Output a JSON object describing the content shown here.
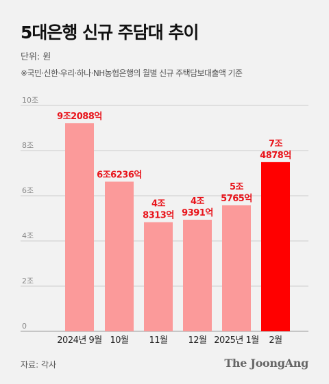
{
  "title": "5대은행 신규 주담대 추이",
  "unit_text": "단위: 원",
  "note": "※국민·신한·우리·하나·NH농협은행의 월별 신규 주택담보대출액 기준",
  "source": "자료: 각사",
  "logo": "The JoongAng",
  "colors": {
    "bar": "#fb9a9a",
    "bar_highlight": "#ff0000",
    "label": "#e8141b",
    "grid": "#cccccc",
    "axis_text": "#888888"
  },
  "chart_data": {
    "type": "bar",
    "categories": [
      "2024년 9월",
      "10월",
      "11월",
      "12월",
      "2025년 1월",
      "2월"
    ],
    "values": [
      9.2088,
      6.6236,
      4.8313,
      4.9391,
      5.5765,
      7.4878
    ],
    "value_labels": [
      [
        "9조2088억"
      ],
      [
        "6조6236억"
      ],
      [
        "4조",
        "8313억"
      ],
      [
        "4조",
        "9391억"
      ],
      [
        "5조",
        "5765억"
      ],
      [
        "7조",
        "4878억"
      ]
    ],
    "highlight_index": 5,
    "yticks": [
      0,
      2,
      4,
      6,
      8,
      10
    ],
    "ytick_labels": [
      "0",
      "2조",
      "4조",
      "6조",
      "8조",
      "10조"
    ],
    "ylim": [
      0,
      10
    ],
    "grid": true
  }
}
